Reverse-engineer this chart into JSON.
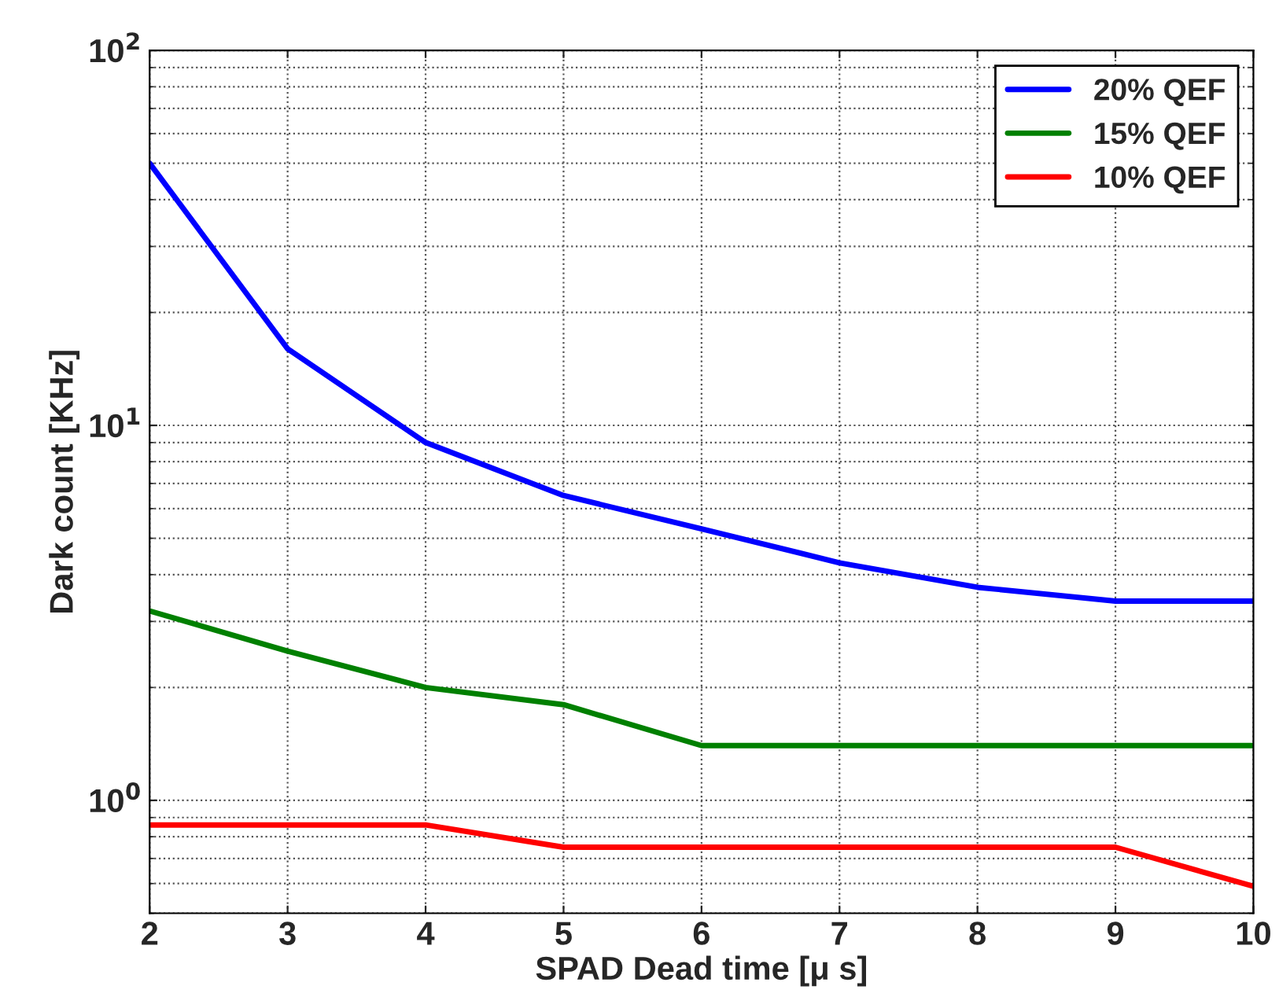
{
  "chart_data": {
    "type": "line",
    "xlabel": "SPAD Dead time [μ s]",
    "ylabel": "Dark count [KHz]",
    "x": [
      2,
      3,
      4,
      5,
      6,
      7,
      8,
      9,
      10
    ],
    "series": [
      {
        "name": "20% QEF",
        "color": "#0000ff",
        "values": [
          50,
          16,
          9,
          6.5,
          5.3,
          4.3,
          3.7,
          3.4,
          3.4
        ]
      },
      {
        "name": "15% QEF",
        "color": "#008000",
        "values": [
          3.2,
          2.5,
          2.0,
          1.8,
          1.4,
          1.4,
          1.4,
          1.4,
          1.4
        ]
      },
      {
        "name": "10% QEF",
        "color": "#ff0000",
        "values": [
          0.86,
          0.86,
          0.86,
          0.75,
          0.75,
          0.75,
          0.75,
          0.75,
          0.59
        ]
      }
    ],
    "log": "y",
    "xlim": [
      2,
      10
    ],
    "ylim": [
      0.5,
      100
    ],
    "xticks": [
      2,
      3,
      4,
      5,
      6,
      7,
      8,
      9,
      10
    ],
    "yticks": [
      {
        "value": 1,
        "label": "10$^{0}$"
      },
      {
        "value": 10,
        "label": "10$^{1}$"
      },
      {
        "value": 100,
        "label": "10$^{2}$"
      }
    ],
    "grid": true,
    "legend": "top right",
    "line_style": "solid",
    "marker": "none"
  }
}
